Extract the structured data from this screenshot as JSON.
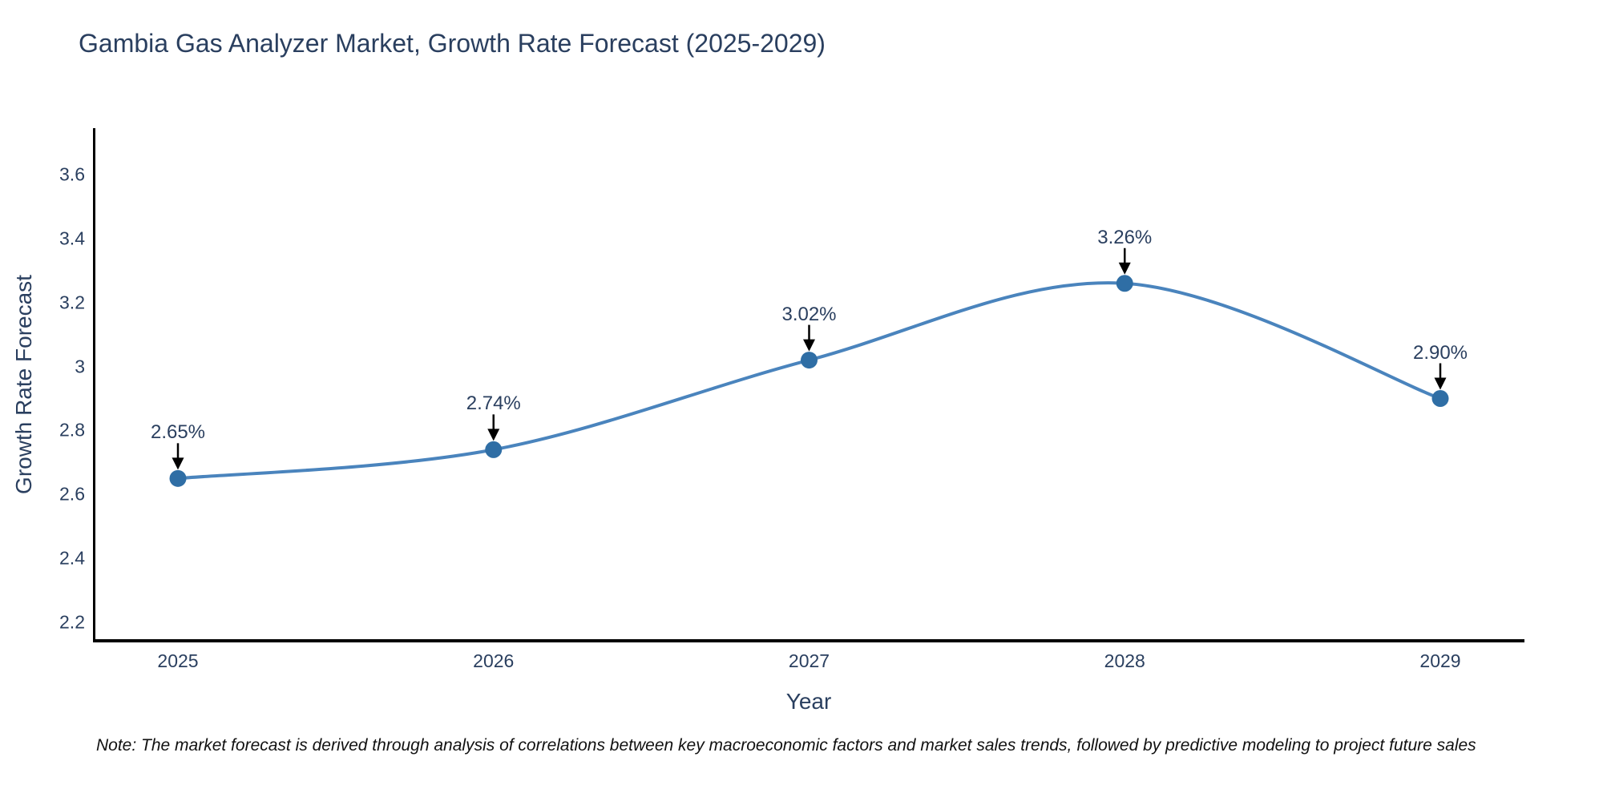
{
  "title": "Gambia Gas Analyzer Market, Growth Rate Forecast (2025-2029)",
  "note": "Note: The market forecast is derived through analysis of correlations between key macroeconomic factors and market sales trends, followed by predictive modeling to project future sales",
  "colors": {
    "line": "#4a84bd",
    "marker": "#2f6ea5",
    "arrow": "#000000",
    "axis": "#000000",
    "text": "#2a3f5f",
    "note_text": "#111111"
  },
  "chart_data": {
    "type": "line",
    "title": "Gambia Gas Analyzer Market, Growth Rate Forecast (2025-2029)",
    "xlabel": "Year",
    "ylabel": "Growth Rate Forecast",
    "x": [
      2025,
      2026,
      2027,
      2028,
      2029
    ],
    "values": [
      2.65,
      2.74,
      3.02,
      3.26,
      2.9
    ],
    "point_labels": [
      "2.65%",
      "2.74%",
      "3.02%",
      "3.26%",
      "2.90%"
    ],
    "xtick_labels": [
      "2025",
      "2026",
      "2027",
      "2028",
      "2029"
    ],
    "yticks": [
      2.2,
      2.4,
      2.6,
      2.8,
      3.0,
      3.2,
      3.4,
      3.6
    ],
    "ytick_labels": [
      "2.2",
      "2.4",
      "2.6",
      "2.8",
      "3",
      "3.2",
      "3.4",
      "3.6"
    ],
    "ylim": [
      2.2,
      3.6
    ],
    "grid": false,
    "legend": "none",
    "line_shape": "spline",
    "annotations": "value labels above each point with downward arrows"
  }
}
